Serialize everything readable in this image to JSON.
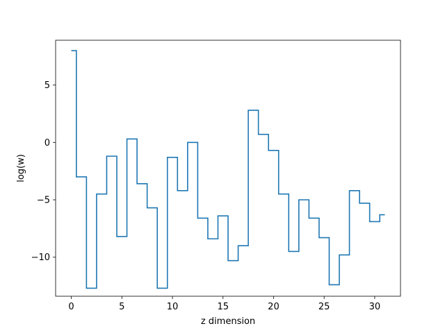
{
  "chart_data": {
    "type": "line",
    "drawstyle": "steps-mid",
    "xlabel": "z dimension",
    "ylabel": "log(w)",
    "xlim": [
      -1.55,
      32.55
    ],
    "ylim": [
      -13.4,
      8.9
    ],
    "grid": false,
    "xticks": [
      0,
      5,
      10,
      15,
      20,
      25,
      30
    ],
    "yticks": [
      -10,
      -5,
      0,
      5
    ],
    "xtick_labels": [
      "0",
      "5",
      "10",
      "15",
      "20",
      "25",
      "30"
    ],
    "ytick_labels": [
      "−10",
      "−5",
      "0",
      "5"
    ],
    "series": [
      {
        "color": "#1f77b4",
        "x": [
          0,
          1,
          2,
          3,
          4,
          5,
          6,
          7,
          8,
          9,
          10,
          11,
          12,
          13,
          14,
          15,
          16,
          17,
          18,
          19,
          20,
          21,
          22,
          23,
          24,
          25,
          26,
          27,
          28,
          29,
          30,
          31
        ],
        "y": [
          8.0,
          -3.0,
          -12.7,
          -4.5,
          -1.2,
          -8.2,
          0.3,
          -3.6,
          -5.7,
          -12.7,
          -1.3,
          -4.2,
          0.0,
          -6.6,
          -8.4,
          -6.4,
          -10.3,
          -9.0,
          2.8,
          0.7,
          -0.7,
          -4.5,
          -9.5,
          -5.0,
          -6.6,
          -8.3,
          -12.4,
          -9.8,
          -4.2,
          -5.3,
          -6.9,
          -6.3
        ]
      }
    ]
  }
}
